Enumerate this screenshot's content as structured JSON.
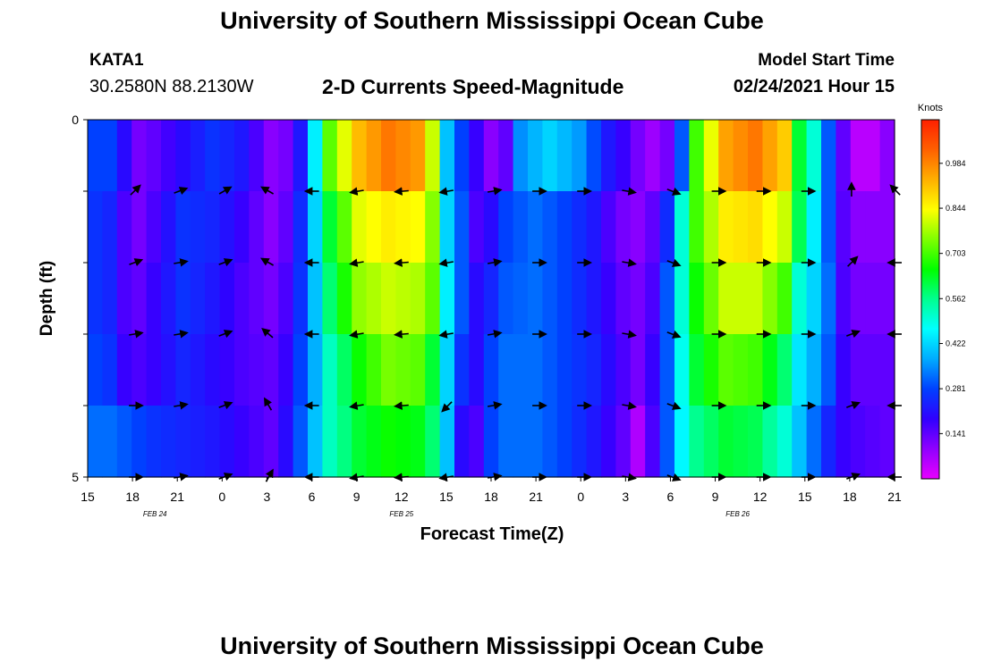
{
  "header": {
    "title": "University of Southern Mississippi Ocean Cube",
    "station": "KATA1",
    "coordinates": "30.2580N 88.2130W",
    "subtitle": "2-D Currents Speed-Magnitude",
    "model_start_label": "Model Start Time",
    "model_start_value": "02/24/2021 Hour 15"
  },
  "footer": {
    "title": "University of Southern Mississippi Ocean Cube"
  },
  "chart_data": {
    "type": "heatmap",
    "title": "2-D Currents Speed-Magnitude",
    "xlabel": "Forecast Time(Z)",
    "ylabel": "Depth (ft)",
    "y_ticks": [
      "0",
      "",
      "",
      "",
      "",
      "5"
    ],
    "ylim": [
      0,
      5
    ],
    "x_ticks": [
      "15",
      "18",
      "21",
      "0",
      "3",
      "6",
      "9",
      "12",
      "15",
      "18",
      "21",
      "0",
      "3",
      "6",
      "9",
      "12",
      "15",
      "18",
      "21"
    ],
    "date_labels": [
      {
        "label": "FEB 24",
        "at_tick": 1.5
      },
      {
        "label": "FEB 25",
        "at_tick": 7
      },
      {
        "label": "FEB 26",
        "at_tick": 14.5
      }
    ],
    "colorbar": {
      "title": "Knots",
      "ticks": [
        "0.984",
        "0.844",
        "0.703",
        "0.562",
        "0.422",
        "0.281",
        "0.141"
      ],
      "min": 0.0,
      "max": 1.12,
      "colors": [
        "#e800ff",
        "#9000ff",
        "#3000ff",
        "#0040ff",
        "#00aaff",
        "#00ffff",
        "#00ff90",
        "#00ff00",
        "#80ff00",
        "#ffff00",
        "#ffb000",
        "#ff6000",
        "#ff2000"
      ]
    },
    "depth_layers": 5,
    "time_steps": 55,
    "layer_profiles": [
      [
        [
          0,
          0.28
        ],
        [
          1,
          0.28
        ],
        [
          2,
          0.2
        ],
        [
          3,
          0.12
        ],
        [
          4,
          0.14
        ],
        [
          6,
          0.2
        ],
        [
          8,
          0.26
        ],
        [
          10,
          0.22
        ],
        [
          12,
          0.1
        ],
        [
          13,
          0.12
        ],
        [
          14,
          0.22
        ],
        [
          15,
          0.45
        ],
        [
          16,
          0.72
        ],
        [
          18,
          0.92
        ],
        [
          20,
          1.0
        ],
        [
          22,
          0.96
        ],
        [
          23,
          0.8
        ],
        [
          24,
          0.4
        ],
        [
          25,
          0.28
        ],
        [
          26,
          0.18
        ],
        [
          27,
          0.1
        ],
        [
          28,
          0.14
        ],
        [
          29,
          0.35
        ],
        [
          31,
          0.42
        ],
        [
          33,
          0.36
        ],
        [
          35,
          0.22
        ],
        [
          36,
          0.18
        ],
        [
          37,
          0.12
        ],
        [
          38,
          0.08
        ],
        [
          39,
          0.12
        ],
        [
          40,
          0.3
        ],
        [
          41,
          0.7
        ],
        [
          43,
          0.95
        ],
        [
          45,
          1.0
        ],
        [
          47,
          0.9
        ],
        [
          48,
          0.62
        ],
        [
          49,
          0.5
        ],
        [
          50,
          0.3
        ],
        [
          51,
          0.14
        ],
        [
          52,
          0.05
        ],
        [
          53,
          0.05
        ],
        [
          54,
          0.1
        ]
      ],
      [
        [
          0,
          0.26
        ],
        [
          1,
          0.24
        ],
        [
          2,
          0.16
        ],
        [
          3,
          0.12
        ],
        [
          4,
          0.16
        ],
        [
          6,
          0.26
        ],
        [
          8,
          0.24
        ],
        [
          10,
          0.18
        ],
        [
          12,
          0.1
        ],
        [
          13,
          0.14
        ],
        [
          14,
          0.25
        ],
        [
          15,
          0.42
        ],
        [
          16,
          0.62
        ],
        [
          18,
          0.82
        ],
        [
          20,
          0.86
        ],
        [
          22,
          0.84
        ],
        [
          23,
          0.75
        ],
        [
          24,
          0.42
        ],
        [
          25,
          0.3
        ],
        [
          26,
          0.16
        ],
        [
          27,
          0.2
        ],
        [
          28,
          0.28
        ],
        [
          30,
          0.32
        ],
        [
          32,
          0.28
        ],
        [
          34,
          0.22
        ],
        [
          35,
          0.16
        ],
        [
          36,
          0.12
        ],
        [
          37,
          0.1
        ],
        [
          38,
          0.14
        ],
        [
          39,
          0.25
        ],
        [
          40,
          0.5
        ],
        [
          41,
          0.7
        ],
        [
          43,
          0.86
        ],
        [
          45,
          0.88
        ],
        [
          47,
          0.8
        ],
        [
          48,
          0.6
        ],
        [
          49,
          0.45
        ],
        [
          50,
          0.3
        ],
        [
          51,
          0.15
        ],
        [
          52,
          0.1
        ],
        [
          54,
          0.1
        ]
      ],
      [
        [
          0,
          0.26
        ],
        [
          1,
          0.24
        ],
        [
          2,
          0.16
        ],
        [
          3,
          0.14
        ],
        [
          4,
          0.18
        ],
        [
          6,
          0.26
        ],
        [
          8,
          0.22
        ],
        [
          10,
          0.16
        ],
        [
          12,
          0.12
        ],
        [
          13,
          0.16
        ],
        [
          14,
          0.26
        ],
        [
          15,
          0.4
        ],
        [
          16,
          0.58
        ],
        [
          18,
          0.76
        ],
        [
          20,
          0.8
        ],
        [
          22,
          0.78
        ],
        [
          23,
          0.72
        ],
        [
          24,
          0.45
        ],
        [
          25,
          0.3
        ],
        [
          26,
          0.2
        ],
        [
          27,
          0.24
        ],
        [
          28,
          0.3
        ],
        [
          30,
          0.32
        ],
        [
          32,
          0.28
        ],
        [
          34,
          0.22
        ],
        [
          35,
          0.18
        ],
        [
          36,
          0.14
        ],
        [
          37,
          0.12
        ],
        [
          38,
          0.16
        ],
        [
          39,
          0.3
        ],
        [
          40,
          0.5
        ],
        [
          41,
          0.66
        ],
        [
          43,
          0.8
        ],
        [
          45,
          0.8
        ],
        [
          47,
          0.7
        ],
        [
          48,
          0.5
        ],
        [
          49,
          0.42
        ],
        [
          50,
          0.32
        ],
        [
          51,
          0.16
        ],
        [
          52,
          0.12
        ],
        [
          54,
          0.12
        ]
      ],
      [
        [
          0,
          0.28
        ],
        [
          1,
          0.26
        ],
        [
          2,
          0.18
        ],
        [
          3,
          0.16
        ],
        [
          4,
          0.18
        ],
        [
          6,
          0.24
        ],
        [
          8,
          0.2
        ],
        [
          10,
          0.16
        ],
        [
          12,
          0.14
        ],
        [
          13,
          0.18
        ],
        [
          14,
          0.28
        ],
        [
          15,
          0.38
        ],
        [
          16,
          0.52
        ],
        [
          18,
          0.66
        ],
        [
          20,
          0.74
        ],
        [
          22,
          0.72
        ],
        [
          23,
          0.62
        ],
        [
          24,
          0.42
        ],
        [
          25,
          0.26
        ],
        [
          26,
          0.2
        ],
        [
          27,
          0.28
        ],
        [
          28,
          0.32
        ],
        [
          30,
          0.32
        ],
        [
          32,
          0.28
        ],
        [
          34,
          0.24
        ],
        [
          35,
          0.2
        ],
        [
          36,
          0.16
        ],
        [
          37,
          0.12
        ],
        [
          38,
          0.18
        ],
        [
          39,
          0.3
        ],
        [
          40,
          0.48
        ],
        [
          41,
          0.62
        ],
        [
          43,
          0.72
        ],
        [
          45,
          0.7
        ],
        [
          47,
          0.58
        ],
        [
          48,
          0.44
        ],
        [
          49,
          0.38
        ],
        [
          50,
          0.3
        ],
        [
          51,
          0.18
        ],
        [
          52,
          0.14
        ],
        [
          54,
          0.14
        ]
      ],
      [
        [
          0,
          0.32
        ],
        [
          1,
          0.32
        ],
        [
          2,
          0.3
        ],
        [
          3,
          0.28
        ],
        [
          4,
          0.26
        ],
        [
          6,
          0.24
        ],
        [
          8,
          0.22
        ],
        [
          10,
          0.18
        ],
        [
          12,
          0.14
        ],
        [
          13,
          0.2
        ],
        [
          14,
          0.3
        ],
        [
          15,
          0.4
        ],
        [
          16,
          0.52
        ],
        [
          18,
          0.62
        ],
        [
          20,
          0.66
        ],
        [
          22,
          0.64
        ],
        [
          23,
          0.58
        ],
        [
          24,
          0.4
        ],
        [
          25,
          0.2
        ],
        [
          26,
          0.16
        ],
        [
          27,
          0.28
        ],
        [
          28,
          0.32
        ],
        [
          30,
          0.32
        ],
        [
          32,
          0.28
        ],
        [
          34,
          0.22
        ],
        [
          35,
          0.18
        ],
        [
          36,
          0.14
        ],
        [
          37,
          0.06
        ],
        [
          38,
          0.16
        ],
        [
          39,
          0.3
        ],
        [
          40,
          0.46
        ],
        [
          41,
          0.56
        ],
        [
          43,
          0.62
        ],
        [
          45,
          0.6
        ],
        [
          47,
          0.5
        ],
        [
          48,
          0.4
        ],
        [
          49,
          0.32
        ],
        [
          50,
          0.24
        ],
        [
          51,
          0.18
        ],
        [
          52,
          0.16
        ],
        [
          54,
          0.14
        ]
      ]
    ],
    "vectors": {
      "depths": [
        1,
        2,
        3,
        4,
        5
      ],
      "x_steps": [
        1,
        2,
        3,
        4,
        5,
        6,
        7,
        8,
        9,
        10,
        11,
        12,
        13,
        14,
        15,
        16,
        17,
        18
      ],
      "directions_deg": [
        [
          45,
          20,
          30,
          150,
          180,
          190,
          185,
          190,
          10,
          0,
          0,
          350,
          340,
          0,
          0,
          0,
          90,
          135
        ],
        [
          20,
          10,
          20,
          150,
          180,
          190,
          185,
          190,
          10,
          0,
          0,
          350,
          340,
          0,
          0,
          0,
          45,
          180
        ],
        [
          10,
          10,
          20,
          140,
          180,
          190,
          185,
          190,
          10,
          0,
          0,
          350,
          340,
          0,
          0,
          0,
          20,
          180
        ],
        [
          0,
          10,
          20,
          120,
          180,
          190,
          185,
          225,
          10,
          0,
          0,
          350,
          340,
          0,
          0,
          0,
          20,
          180
        ],
        [
          0,
          10,
          20,
          60,
          180,
          190,
          185,
          190,
          10,
          0,
          0,
          350,
          340,
          0,
          0,
          0,
          20,
          180
        ]
      ]
    }
  }
}
